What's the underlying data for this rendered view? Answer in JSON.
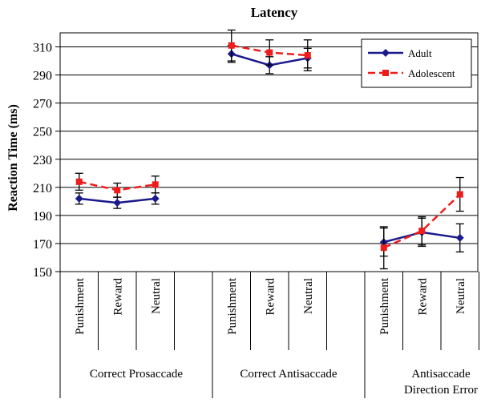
{
  "chart_data": {
    "type": "line",
    "title": "Latency",
    "ylabel": "Reaction Time (ms)",
    "ylim": [
      150,
      320
    ],
    "yticks": [
      150,
      170,
      190,
      210,
      230,
      250,
      270,
      290,
      310
    ],
    "gridlines": true,
    "legend_position": "top-right",
    "groups": [
      {
        "label": "Correct Prosaccade",
        "categories": [
          "Punishment",
          "Reward",
          "Neutral"
        ]
      },
      {
        "label": "Correct Antisaccade",
        "categories": [
          "Punishment",
          "Reward",
          "Neutral"
        ]
      },
      {
        "label": "Antisaccade Direction Error",
        "label_lines": [
          "Antisaccade",
          "Direction Error"
        ],
        "categories": [
          "Punishment",
          "Reward",
          "Neutral"
        ]
      }
    ],
    "series": [
      {
        "name": "Adult",
        "color": "#1a1a8c",
        "marker": "diamond",
        "line_style": "solid",
        "groups": [
          {
            "values": [
              202,
              199,
              202
            ],
            "errors": [
              4,
              4,
              4
            ]
          },
          {
            "values": [
              305,
              297,
              302
            ],
            "errors": [
              6,
              6,
              7
            ]
          },
          {
            "values": [
              171,
              178,
              174
            ],
            "errors": [
              10,
              10,
              10
            ]
          }
        ]
      },
      {
        "name": "Adolescent",
        "color": "#ee1c1c",
        "marker": "square",
        "line_style": "dashed",
        "groups": [
          {
            "values": [
              214,
              208,
              212
            ],
            "errors": [
              6,
              5,
              6
            ]
          },
          {
            "values": [
              311,
              306,
              304
            ],
            "errors": [
              11,
              9,
              11
            ]
          },
          {
            "values": [
              167,
              179,
              205
            ],
            "errors": [
              15,
              10,
              12
            ]
          }
        ]
      }
    ]
  }
}
